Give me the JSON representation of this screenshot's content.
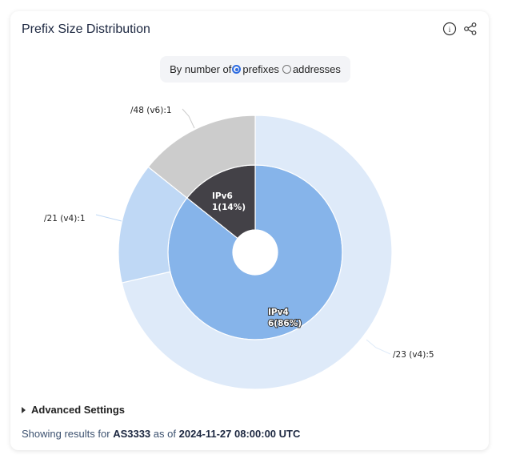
{
  "card": {
    "title": "Prefix Size Distribution",
    "icons": [
      "info-icon",
      "share-icon"
    ]
  },
  "toggle": {
    "label": "By number of",
    "options": [
      {
        "label": "prefixes",
        "selected": true
      },
      {
        "label": "addresses",
        "selected": false
      }
    ]
  },
  "chart_data": {
    "type": "pie",
    "title": "Prefix Size Distribution",
    "rings": [
      {
        "name": "inner",
        "slices": [
          {
            "label": "IPv4",
            "value": 6,
            "percent": 86,
            "display": "6(86%)",
            "color": "#86b4ea"
          },
          {
            "label": "IPv6",
            "value": 1,
            "percent": 14,
            "display": "1(14%)",
            "color": "#434147"
          }
        ]
      },
      {
        "name": "outer",
        "slices": [
          {
            "label": "/23 (v4)",
            "value": 5,
            "display": "/23 (v4):5",
            "color": "#deeaf9"
          },
          {
            "label": "/21 (v4)",
            "value": 1,
            "display": "/21 (v4):1",
            "color": "#bfd8f5"
          },
          {
            "label": "/48 (v6)",
            "value": 1,
            "display": "/48 (v6):1",
            "color": "#cccccc"
          }
        ]
      }
    ]
  },
  "advanced": {
    "label": "Advanced Settings"
  },
  "status": {
    "prefix": "Showing results for",
    "asn": "AS3333",
    "mid": "as of",
    "timestamp": "2024-11-27 08:00:00 UTC"
  }
}
